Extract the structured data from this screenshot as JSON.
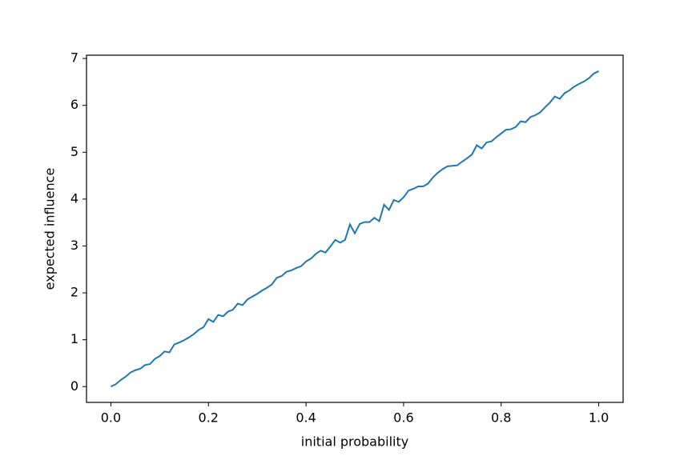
{
  "chart_data": {
    "type": "line",
    "xlabel": "initial probability",
    "ylabel": "expected influence",
    "x": [
      0,
      0.01,
      0.02,
      0.03,
      0.04,
      0.05,
      0.06,
      0.07,
      0.08,
      0.09,
      0.1,
      0.11,
      0.12,
      0.13,
      0.14,
      0.15,
      0.16,
      0.17,
      0.18,
      0.19,
      0.2,
      0.21,
      0.22,
      0.23,
      0.24,
      0.25,
      0.26,
      0.27,
      0.28,
      0.29,
      0.3,
      0.31,
      0.32,
      0.33,
      0.34,
      0.35,
      0.36,
      0.37,
      0.38,
      0.39,
      0.4,
      0.41,
      0.42,
      0.43,
      0.44,
      0.45,
      0.46,
      0.47,
      0.48,
      0.49,
      0.5,
      0.51,
      0.52,
      0.53,
      0.54,
      0.55,
      0.56,
      0.57,
      0.58,
      0.59,
      0.6,
      0.61,
      0.62,
      0.63,
      0.64,
      0.65,
      0.66,
      0.67,
      0.68,
      0.69,
      0.7,
      0.71,
      0.72,
      0.73,
      0.74,
      0.75,
      0.76,
      0.77,
      0.78,
      0.79,
      0.8,
      0.81,
      0.82,
      0.83,
      0.84,
      0.85,
      0.86,
      0.87,
      0.88,
      0.89,
      0.9,
      0.91,
      0.92,
      0.93,
      0.94,
      0.95,
      0.96,
      0.97,
      0.98,
      0.99,
      1
    ],
    "series": [
      {
        "color": "#1f77b4",
        "values": [
          0,
          0.05,
          0.14,
          0.21,
          0.3,
          0.35,
          0.38,
          0.46,
          0.48,
          0.59,
          0.65,
          0.75,
          0.73,
          0.9,
          0.94,
          0.99,
          1.05,
          1.12,
          1.21,
          1.27,
          1.44,
          1.38,
          1.53,
          1.5,
          1.6,
          1.64,
          1.77,
          1.74,
          1.86,
          1.92,
          1.98,
          2.05,
          2.11,
          2.18,
          2.32,
          2.36,
          2.45,
          2.48,
          2.53,
          2.57,
          2.67,
          2.73,
          2.83,
          2.9,
          2.86,
          2.99,
          3.13,
          3.07,
          3.13,
          3.46,
          3.27,
          3.47,
          3.51,
          3.51,
          3.6,
          3.53,
          3.88,
          3.77,
          3.98,
          3.94,
          4.04,
          4.18,
          4.22,
          4.27,
          4.27,
          4.33,
          4.46,
          4.56,
          4.64,
          4.7,
          4.71,
          4.72,
          4.8,
          4.87,
          4.95,
          5.15,
          5.08,
          5.21,
          5.23,
          5.32,
          5.4,
          5.48,
          5.49,
          5.54,
          5.66,
          5.64,
          5.75,
          5.79,
          5.85,
          5.96,
          6.06,
          6.19,
          6.14,
          6.26,
          6.32,
          6.4,
          6.46,
          6.51,
          6.58,
          6.68,
          6.73
        ]
      }
    ],
    "xlim": [
      -0.05,
      1.05
    ],
    "xticks": [
      {
        "value": 0,
        "label": "0.0"
      },
      0.2,
      0.4,
      0.6,
      0.8,
      {
        "value": 1,
        "label": "1.0"
      }
    ],
    "ylim": [
      -0.337,
      7.07
    ],
    "yticks": [
      0,
      1,
      2,
      3,
      4,
      5,
      6,
      7
    ]
  }
}
